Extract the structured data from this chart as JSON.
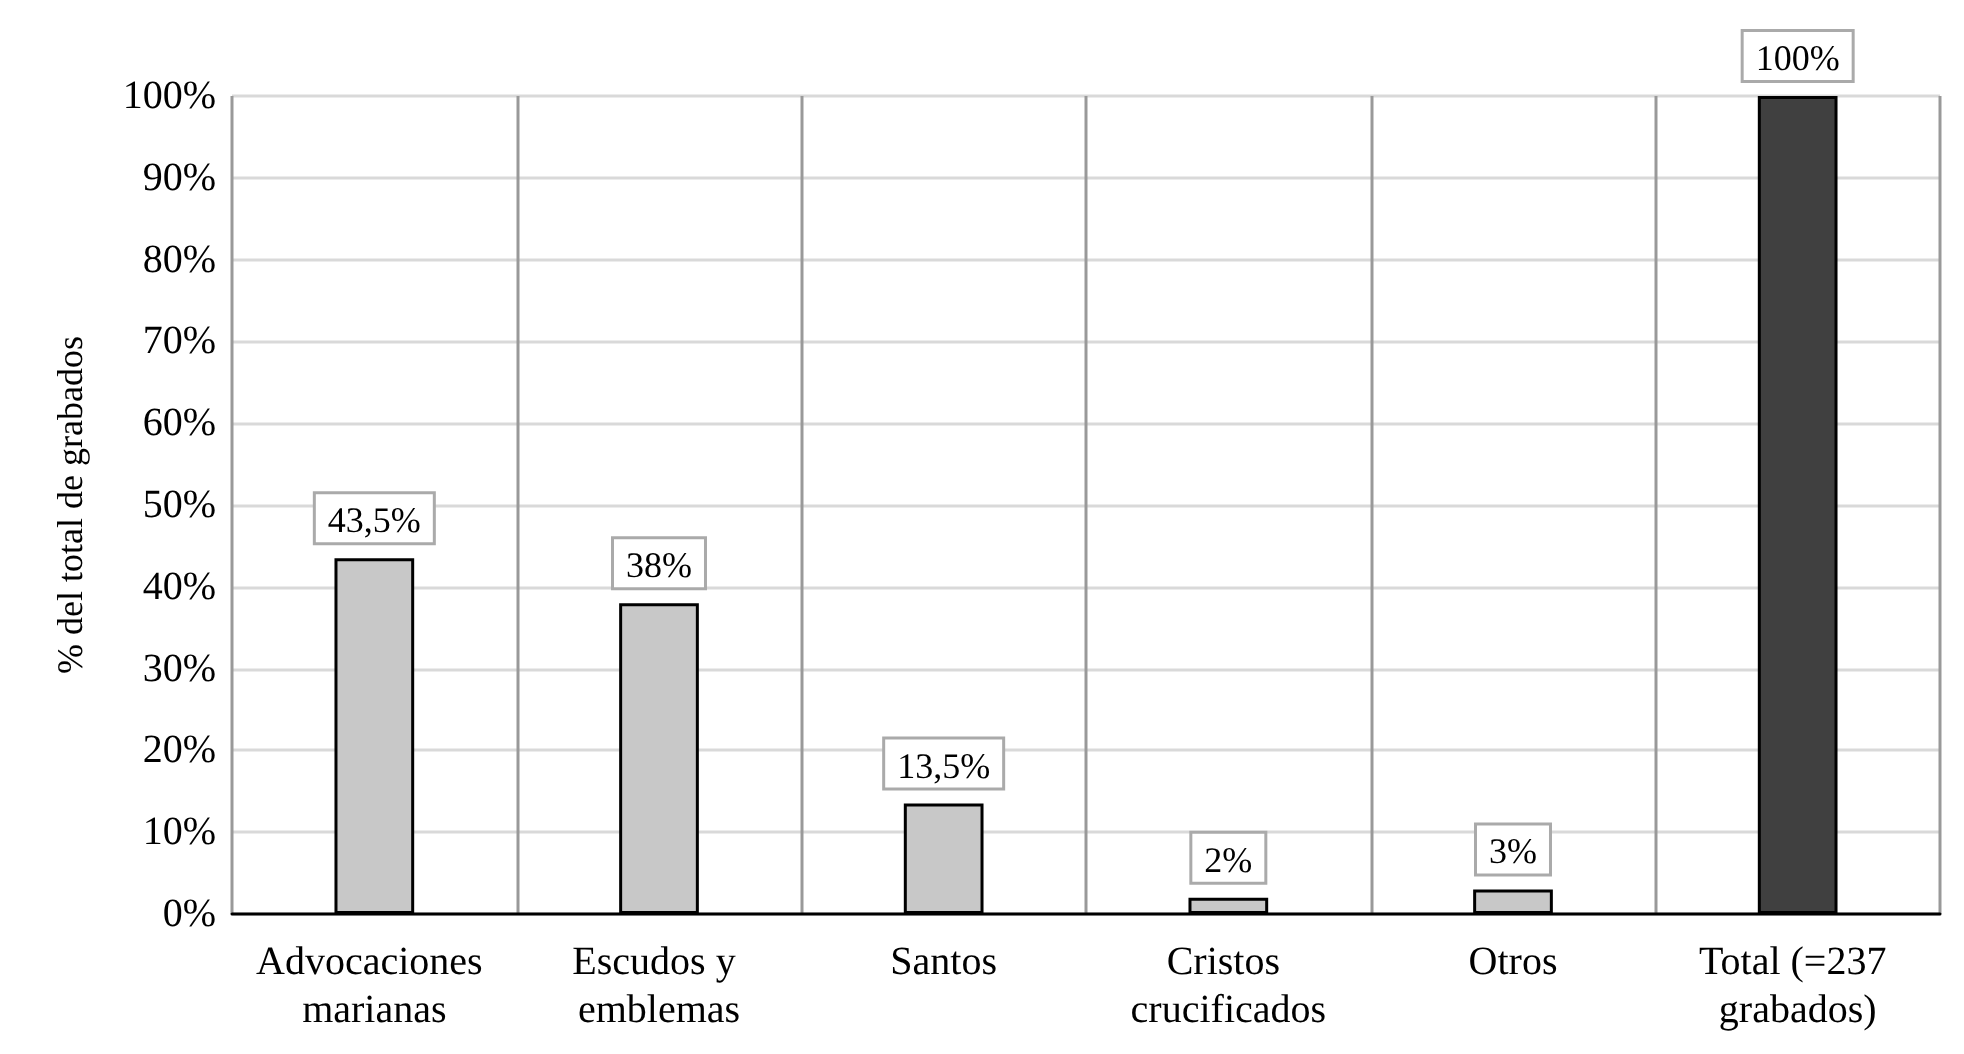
{
  "chart_data": {
    "type": "bar",
    "ylabel": "% del total de grabados",
    "categories": [
      "Advocaciones marianas",
      "Escudos y emblemas",
      "Santos",
      "Cristos crucificados",
      "Otros",
      "Total (=237 grabados)"
    ],
    "values": [
      43.5,
      38,
      13.5,
      2,
      3,
      100
    ],
    "colors": [
      "#c8c8c8",
      "#c8c8c8",
      "#c8c8c8",
      "#c8c8c8",
      "#c8c8c8",
      "#404040"
    ],
    "value_labels": [
      "43,5%",
      "38%",
      "13,5%",
      "2%",
      "3%",
      "100%"
    ],
    "ylim": [
      0,
      100
    ],
    "yticks": [
      {
        "value": 0,
        "label": "0%"
      },
      {
        "value": 10,
        "label": "10%"
      },
      {
        "value": 20,
        "label": "20%"
      },
      {
        "value": 30,
        "label": "30%"
      },
      {
        "value": 40,
        "label": "40%"
      },
      {
        "value": 50,
        "label": "50%"
      },
      {
        "value": 60,
        "label": "60%"
      },
      {
        "value": 70,
        "label": "70%"
      },
      {
        "value": 80,
        "label": "80%"
      },
      {
        "value": 90,
        "label": "90%"
      },
      {
        "value": 100,
        "label": "100%"
      }
    ],
    "grid": true
  }
}
